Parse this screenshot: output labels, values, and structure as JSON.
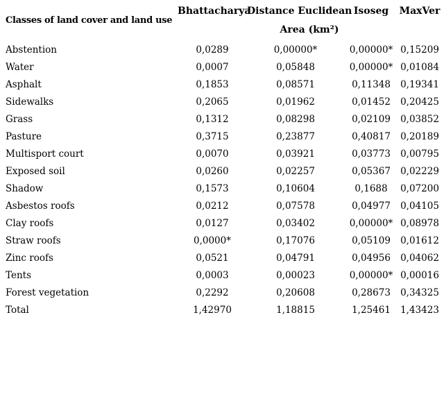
{
  "page": {
    "background_color": "#ffffff",
    "text_color": "#000000"
  },
  "table": {
    "header": {
      "classes_label": "Classes of land cover and land use",
      "columns": [
        "Bhattacharya",
        "Distance Euclidean",
        "Isoseg",
        "MaxVer"
      ],
      "area_subheader": "Area (km²)"
    },
    "rows": [
      {
        "label": "Abstention",
        "values": [
          "0,0289",
          "0,00000*",
          "0,00000*",
          "0,15209"
        ]
      },
      {
        "label": "Water",
        "values": [
          "0,0007",
          "0,05848",
          "0,00000*",
          "0,01084"
        ]
      },
      {
        "label": "Asphalt",
        "values": [
          "0,1853",
          "0,08571",
          "0,11348",
          "0,19341"
        ]
      },
      {
        "label": "Sidewalks",
        "values": [
          "0,2065",
          "0,01962",
          "0,01452",
          "0,20425"
        ]
      },
      {
        "label": "Grass",
        "values": [
          "0,1312",
          "0,08298",
          "0,02109",
          "0,03852"
        ]
      },
      {
        "label": "Pasture",
        "values": [
          "0,3715",
          "0,23877",
          "0,40817",
          "0,20189"
        ]
      },
      {
        "label": "Multisport court",
        "values": [
          "0,0070",
          "0,03921",
          "0,03773",
          "0,00795"
        ]
      },
      {
        "label": "Exposed soil",
        "values": [
          "0,0260",
          "0,02257",
          "0,05367",
          "0,02229"
        ]
      },
      {
        "label": "Shadow",
        "values": [
          "0,1573",
          "0,10604",
          "0,1688",
          "0,07200"
        ]
      },
      {
        "label": "Asbestos roofs",
        "values": [
          "0,0212",
          "0,07578",
          "0,04977",
          "0,04105"
        ]
      },
      {
        "label": "Clay roofs",
        "values": [
          "0,0127",
          "0,03402",
          "0,00000*",
          "0,08978"
        ]
      },
      {
        "label": "Straw roofs",
        "values": [
          "0,0000*",
          "0,17076",
          "0,05109",
          "0,01612"
        ]
      },
      {
        "label": "Zinc roofs",
        "values": [
          "0,0521",
          "0,04791",
          "0,04956",
          "0,04062"
        ]
      },
      {
        "label": "Tents",
        "values": [
          "0,0003",
          "0,00023",
          "0,00000*",
          "0,00016"
        ]
      },
      {
        "label": "Forest vegetation",
        "values": [
          "0,2292",
          "0,20608",
          "0,28673",
          "0,34325"
        ]
      },
      {
        "label": "Total",
        "values": [
          "1,42970",
          "1,18815",
          "1,25461",
          "1,43423"
        ]
      }
    ]
  }
}
